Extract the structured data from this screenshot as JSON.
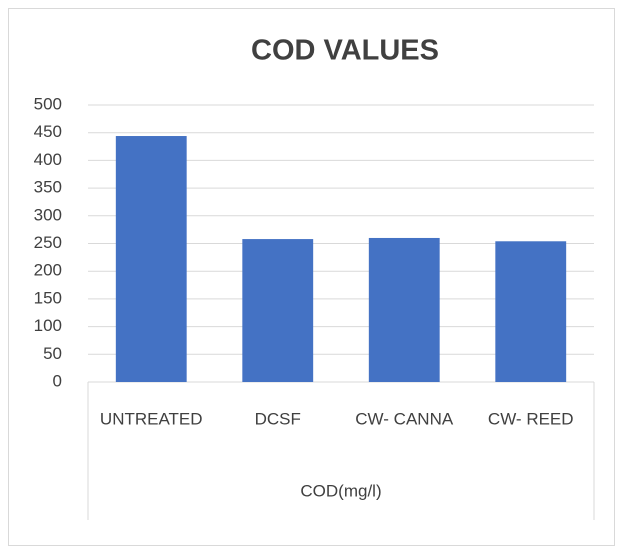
{
  "chart_data": {
    "type": "bar",
    "title": "COD VALUES",
    "x_label": "COD(mg/l)",
    "categories": [
      "UNTREATED",
      "DCSF",
      "CW- CANNA",
      "CW- REED"
    ],
    "values": [
      444,
      258,
      260,
      254
    ],
    "color": "#4472c4",
    "ylim": [
      0,
      500
    ],
    "yticks": [
      0,
      50,
      100,
      150,
      200,
      250,
      300,
      350,
      400,
      450,
      500
    ],
    "grid": true
  }
}
